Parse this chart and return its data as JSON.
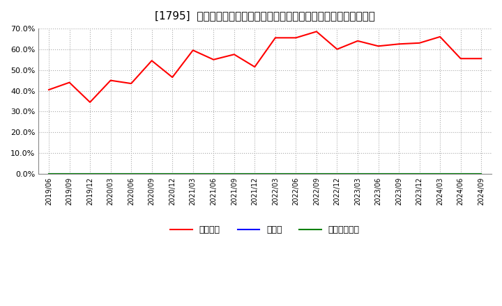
{
  "title": "[1795]  自己資本、のれん、繰延税金資産の総資産に対する比率の推移",
  "x_labels": [
    "2019/06",
    "2019/09",
    "2019/12",
    "2020/03",
    "2020/06",
    "2020/09",
    "2020/12",
    "2021/03",
    "2021/06",
    "2021/09",
    "2021/12",
    "2022/03",
    "2022/06",
    "2022/09",
    "2022/12",
    "2023/03",
    "2023/06",
    "2023/09",
    "2023/12",
    "2024/03",
    "2024/06",
    "2024/09"
  ],
  "equity_ratio": [
    0.405,
    0.44,
    0.345,
    0.45,
    0.435,
    0.545,
    0.465,
    0.595,
    0.55,
    0.575,
    0.515,
    0.655,
    0.655,
    0.685,
    0.6,
    0.64,
    0.615,
    0.625,
    0.63,
    0.66,
    0.555,
    0.555
  ],
  "goodwill_ratio": [
    0,
    0,
    0,
    0,
    0,
    0,
    0,
    0,
    0,
    0,
    0,
    0,
    0,
    0,
    0,
    0,
    0,
    0,
    0,
    0,
    0,
    0
  ],
  "deferred_tax_ratio": [
    0,
    0,
    0,
    0,
    0,
    0,
    0,
    0,
    0,
    0,
    0,
    0,
    0,
    0,
    0,
    0,
    0,
    0,
    0,
    0,
    0,
    0
  ],
  "equity_color": "#ff0000",
  "goodwill_color": "#0000ff",
  "deferred_tax_color": "#008000",
  "background_color": "#ffffff",
  "grid_color": "#aaaaaa",
  "ylim": [
    0.0,
    0.7
  ],
  "yticks": [
    0.0,
    0.1,
    0.2,
    0.3,
    0.4,
    0.5,
    0.6,
    0.7
  ],
  "legend_labels": [
    "自己資本",
    "のれん",
    "繰延税金資産"
  ],
  "title_fontsize": 11
}
